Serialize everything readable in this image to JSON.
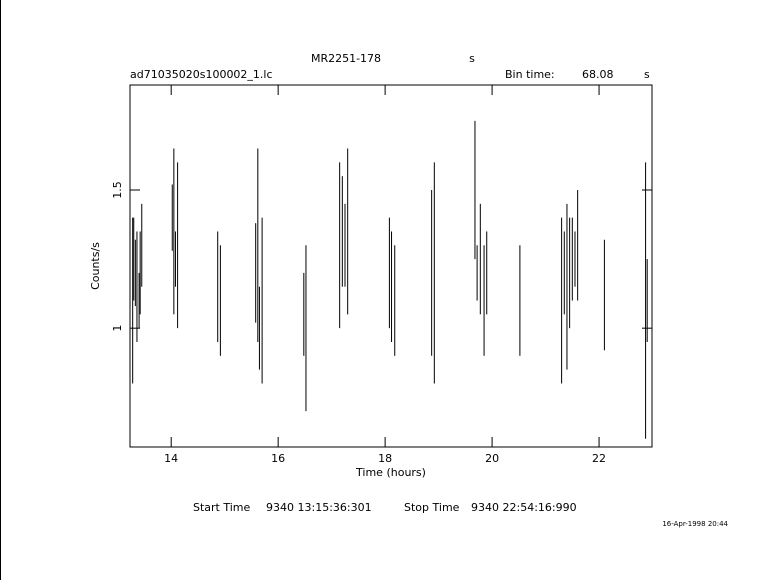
{
  "chart_data": {
    "type": "errorbar",
    "title": "MR2251-178",
    "title_unit": "s",
    "file_name": "ad71035020s100002_1.lc",
    "bin_time_label": "Bin time:",
    "bin_time": 68.08,
    "bin_time_unit": "s",
    "x_label": "Time (hours)",
    "y_label": "Counts/s",
    "start_label": "Start Time",
    "start_value": "9340 13:15:36:301",
    "stop_label": "Stop Time",
    "stop_value": "9340 22:54:16:990",
    "timestamp": "16-Apr-1998 20:44",
    "color": "#000000",
    "xlim": [
      13.23,
      22.99
    ],
    "xticks": [
      14,
      16,
      18,
      20,
      22
    ],
    "ylim": [
      0.57,
      1.88
    ],
    "yticks": [
      1,
      1.5
    ],
    "x": [
      13.28,
      13.3,
      13.33,
      13.36,
      13.4,
      13.42,
      13.45,
      14.02,
      14.05,
      14.08,
      14.12,
      14.87,
      14.92,
      15.58,
      15.62,
      15.65,
      15.7,
      16.48,
      16.52,
      17.15,
      17.2,
      17.25,
      17.3,
      18.08,
      18.12,
      18.18,
      18.87,
      18.92,
      19.68,
      19.72,
      19.78,
      19.85,
      19.9,
      20.52,
      21.3,
      21.35,
      21.4,
      21.45,
      21.5,
      21.55,
      21.6,
      22.1,
      22.87,
      22.9
    ],
    "values": [
      1.1,
      1.25,
      1.2,
      1.15,
      1.1,
      1.2,
      1.3,
      1.4,
      1.35,
      1.25,
      1.3,
      1.15,
      1.1,
      1.2,
      1.3,
      1.0,
      1.1,
      1.05,
      1.0,
      1.3,
      1.35,
      1.3,
      1.35,
      1.2,
      1.15,
      1.1,
      1.2,
      1.2,
      1.5,
      1.2,
      1.25,
      1.1,
      1.2,
      1.1,
      1.1,
      1.2,
      1.15,
      1.2,
      1.25,
      1.25,
      1.3,
      1.12,
      1.1,
      1.1
    ],
    "errors": [
      0.3,
      0.15,
      0.12,
      0.2,
      0.1,
      0.15,
      0.15,
      0.12,
      0.3,
      0.1,
      0.3,
      0.2,
      0.2,
      0.18,
      0.35,
      0.15,
      0.3,
      0.15,
      0.3,
      0.3,
      0.2,
      0.15,
      0.3,
      0.2,
      0.2,
      0.2,
      0.3,
      0.4,
      0.25,
      0.1,
      0.2,
      0.2,
      0.15,
      0.2,
      0.3,
      0.15,
      0.3,
      0.2,
      0.15,
      0.1,
      0.2,
      0.2,
      0.5,
      0.15
    ]
  }
}
